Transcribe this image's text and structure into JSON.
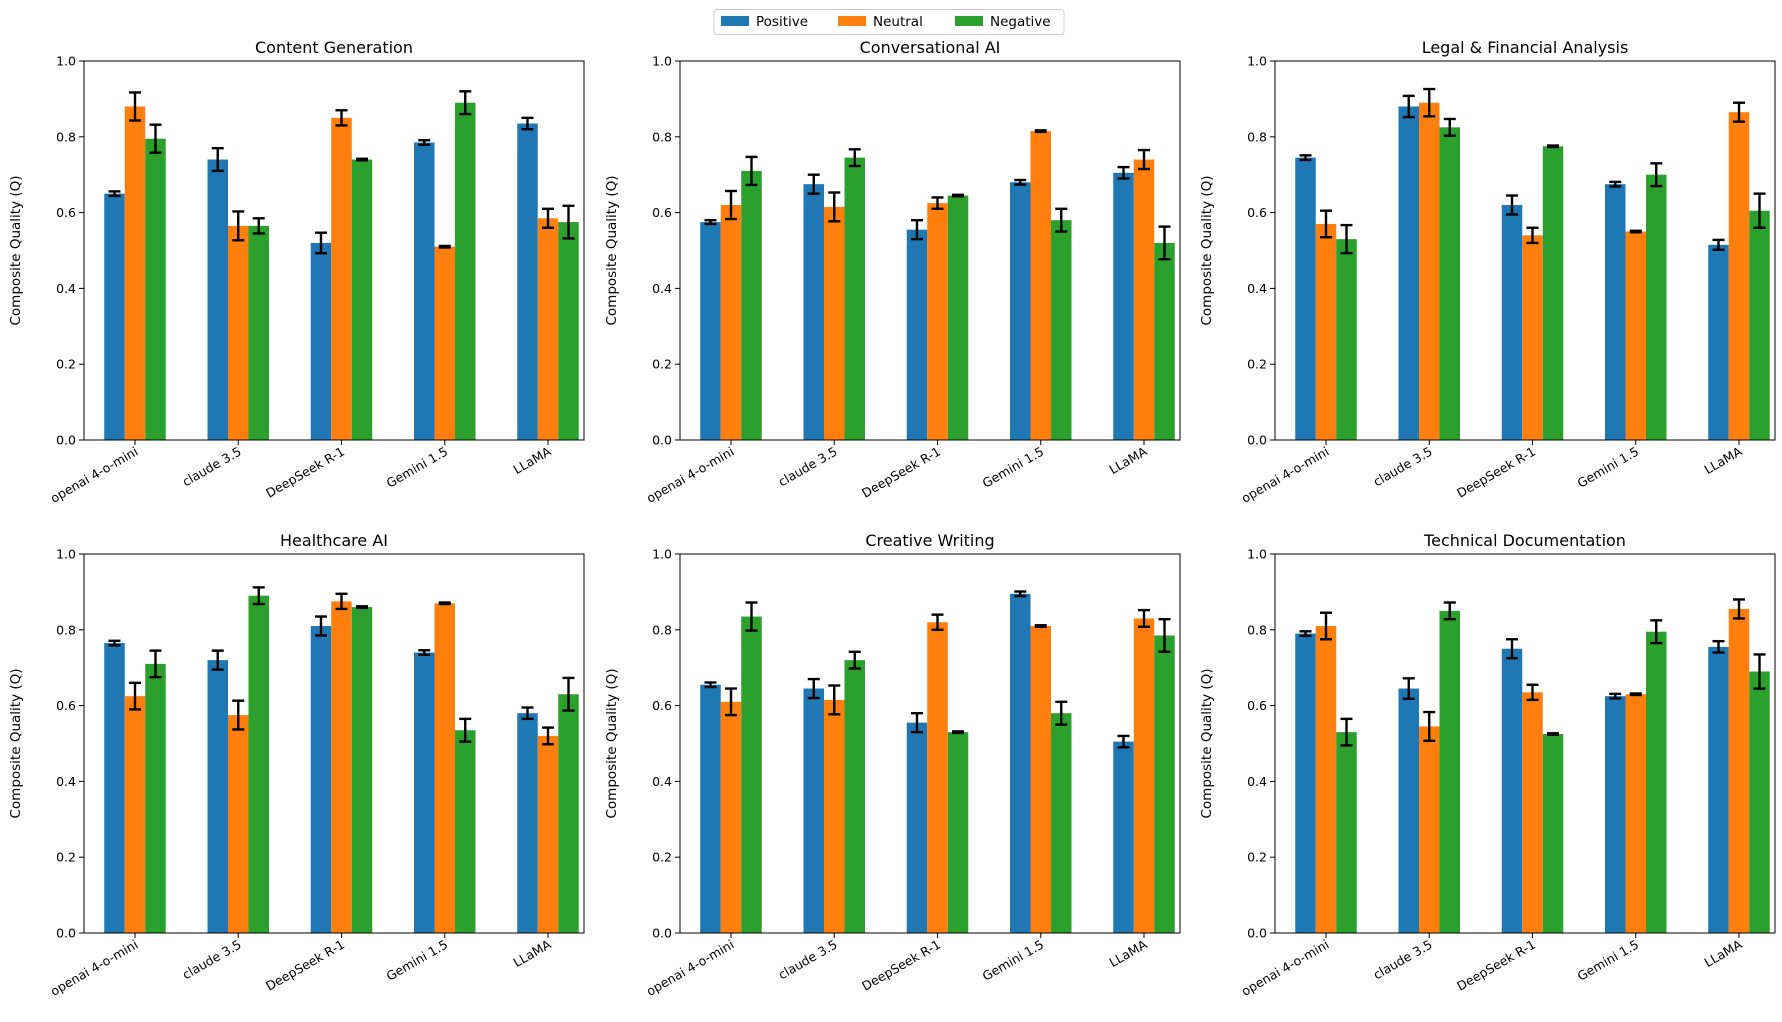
{
  "legend": {
    "entries": [
      {
        "name": "Positive",
        "color": "#1f77b4"
      },
      {
        "name": "Neutral",
        "color": "#ff7f0e"
      },
      {
        "name": "Negative",
        "color": "#2ca02c"
      }
    ]
  },
  "chart_data": [
    {
      "type": "bar",
      "title": "Content Generation",
      "ylabel": "Composite Quality (Q)",
      "ylim": [
        0,
        1
      ],
      "yticks": [
        "0.0",
        "0.2",
        "0.4",
        "0.6",
        "0.8",
        "1.0"
      ],
      "categories": [
        "openai 4-o-mini",
        "claude 3.5",
        "DeepSeek R-1",
        "Gemini 1.5",
        "LLaMA"
      ],
      "series": [
        {
          "name": "Positive",
          "color": "#1f77b4",
          "values": [
            0.65,
            0.74,
            0.52,
            0.785,
            0.835
          ],
          "errors": [
            0.006,
            0.03,
            0.027,
            0.006,
            0.015
          ]
        },
        {
          "name": "Neutral",
          "color": "#ff7f0e",
          "values": [
            0.88,
            0.565,
            0.85,
            0.51,
            0.585
          ],
          "errors": [
            0.037,
            0.038,
            0.02,
            0.002,
            0.025
          ]
        },
        {
          "name": "Negative",
          "color": "#2ca02c",
          "values": [
            0.795,
            0.565,
            0.74,
            0.89,
            0.575
          ],
          "errors": [
            0.037,
            0.02,
            0.002,
            0.03,
            0.043
          ]
        }
      ]
    },
    {
      "type": "bar",
      "title": "Conversational AI",
      "ylabel": "Composite Quality (Q)",
      "ylim": [
        0,
        1
      ],
      "yticks": [
        "0.0",
        "0.2",
        "0.4",
        "0.6",
        "0.8",
        "1.0"
      ],
      "categories": [
        "openai 4-o-mini",
        "claude 3.5",
        "DeepSeek R-1",
        "Gemini 1.5",
        "LLaMA"
      ],
      "series": [
        {
          "name": "Positive",
          "color": "#1f77b4",
          "values": [
            0.575,
            0.675,
            0.555,
            0.68,
            0.705
          ],
          "errors": [
            0.005,
            0.025,
            0.025,
            0.006,
            0.015
          ]
        },
        {
          "name": "Neutral",
          "color": "#ff7f0e",
          "values": [
            0.62,
            0.615,
            0.625,
            0.815,
            0.74
          ],
          "errors": [
            0.037,
            0.038,
            0.015,
            0.002,
            0.025
          ]
        },
        {
          "name": "Negative",
          "color": "#2ca02c",
          "values": [
            0.71,
            0.745,
            0.645,
            0.58,
            0.52
          ],
          "errors": [
            0.037,
            0.022,
            0.002,
            0.03,
            0.043
          ]
        }
      ]
    },
    {
      "type": "bar",
      "title": "Legal & Financial Analysis",
      "ylabel": "Composite Quality (Q)",
      "ylim": [
        0,
        1
      ],
      "yticks": [
        "0.0",
        "0.2",
        "0.4",
        "0.6",
        "0.8",
        "1.0"
      ],
      "categories": [
        "openai 4-o-mini",
        "claude 3.5",
        "DeepSeek R-1",
        "Gemini 1.5",
        "LLaMA"
      ],
      "series": [
        {
          "name": "Positive",
          "color": "#1f77b4",
          "values": [
            0.745,
            0.88,
            0.62,
            0.675,
            0.515
          ],
          "errors": [
            0.006,
            0.028,
            0.025,
            0.006,
            0.013
          ]
        },
        {
          "name": "Neutral",
          "color": "#ff7f0e",
          "values": [
            0.57,
            0.89,
            0.54,
            0.55,
            0.865
          ],
          "errors": [
            0.035,
            0.036,
            0.02,
            0.002,
            0.025
          ]
        },
        {
          "name": "Negative",
          "color": "#2ca02c",
          "values": [
            0.53,
            0.825,
            0.775,
            0.7,
            0.605
          ],
          "errors": [
            0.037,
            0.022,
            0.002,
            0.03,
            0.045
          ]
        }
      ]
    },
    {
      "type": "bar",
      "title": "Healthcare AI",
      "ylabel": "Composite Quality (Q)",
      "ylim": [
        0,
        1
      ],
      "yticks": [
        "0.0",
        "0.2",
        "0.4",
        "0.6",
        "0.8",
        "1.0"
      ],
      "categories": [
        "openai 4-o-mini",
        "claude 3.5",
        "DeepSeek R-1",
        "Gemini 1.5",
        "LLaMA"
      ],
      "series": [
        {
          "name": "Positive",
          "color": "#1f77b4",
          "values": [
            0.765,
            0.72,
            0.81,
            0.74,
            0.58
          ],
          "errors": [
            0.006,
            0.025,
            0.025,
            0.006,
            0.015
          ]
        },
        {
          "name": "Neutral",
          "color": "#ff7f0e",
          "values": [
            0.625,
            0.575,
            0.875,
            0.87,
            0.52
          ],
          "errors": [
            0.035,
            0.038,
            0.02,
            0.002,
            0.022
          ]
        },
        {
          "name": "Negative",
          "color": "#2ca02c",
          "values": [
            0.71,
            0.89,
            0.86,
            0.535,
            0.63
          ],
          "errors": [
            0.035,
            0.022,
            0.002,
            0.03,
            0.043
          ]
        }
      ]
    },
    {
      "type": "bar",
      "title": "Creative Writing",
      "ylabel": "Composite Quality (Q)",
      "ylim": [
        0,
        1
      ],
      "yticks": [
        "0.0",
        "0.2",
        "0.4",
        "0.6",
        "0.8",
        "1.0"
      ],
      "categories": [
        "openai 4-o-mini",
        "claude 3.5",
        "DeepSeek R-1",
        "Gemini 1.5",
        "LLaMA"
      ],
      "series": [
        {
          "name": "Positive",
          "color": "#1f77b4",
          "values": [
            0.655,
            0.645,
            0.555,
            0.895,
            0.505
          ],
          "errors": [
            0.006,
            0.025,
            0.025,
            0.006,
            0.015
          ]
        },
        {
          "name": "Neutral",
          "color": "#ff7f0e",
          "values": [
            0.61,
            0.615,
            0.82,
            0.81,
            0.83
          ],
          "errors": [
            0.035,
            0.038,
            0.02,
            0.002,
            0.022
          ]
        },
        {
          "name": "Negative",
          "color": "#2ca02c",
          "values": [
            0.835,
            0.72,
            0.53,
            0.58,
            0.785
          ],
          "errors": [
            0.037,
            0.022,
            0.002,
            0.03,
            0.043
          ]
        }
      ]
    },
    {
      "type": "bar",
      "title": "Technical Documentation",
      "ylabel": "Composite Quality (Q)",
      "ylim": [
        0,
        1
      ],
      "yticks": [
        "0.0",
        "0.2",
        "0.4",
        "0.6",
        "0.8",
        "1.0"
      ],
      "categories": [
        "openai 4-o-mini",
        "claude 3.5",
        "DeepSeek R-1",
        "Gemini 1.5",
        "LLaMA"
      ],
      "series": [
        {
          "name": "Positive",
          "color": "#1f77b4",
          "values": [
            0.79,
            0.645,
            0.75,
            0.625,
            0.755
          ],
          "errors": [
            0.006,
            0.027,
            0.025,
            0.006,
            0.015
          ]
        },
        {
          "name": "Neutral",
          "color": "#ff7f0e",
          "values": [
            0.81,
            0.545,
            0.635,
            0.63,
            0.855
          ],
          "errors": [
            0.035,
            0.038,
            0.02,
            0.002,
            0.025
          ]
        },
        {
          "name": "Negative",
          "color": "#2ca02c",
          "values": [
            0.53,
            0.85,
            0.525,
            0.795,
            0.69
          ],
          "errors": [
            0.035,
            0.022,
            0.002,
            0.03,
            0.045
          ]
        }
      ]
    }
  ]
}
